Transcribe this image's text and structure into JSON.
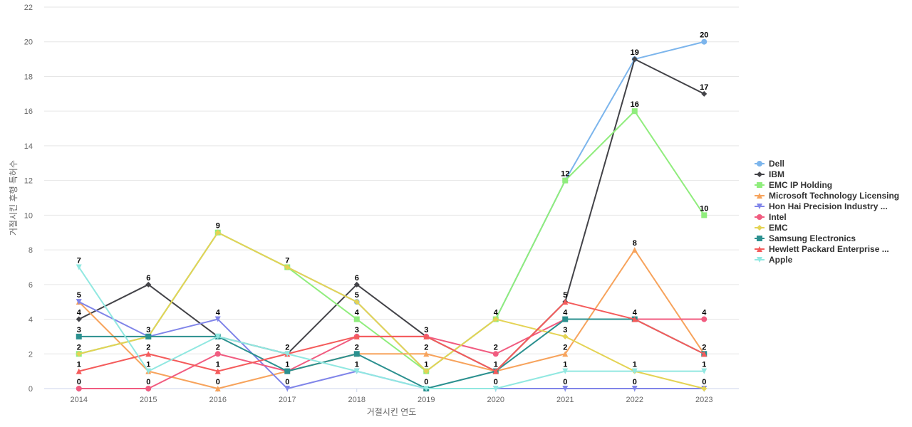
{
  "chart_data": {
    "type": "line",
    "title": "",
    "xlabel": "거절시킨 연도",
    "ylabel": "거절시킨 후행 특허수",
    "x": [
      "2014",
      "2015",
      "2016",
      "2017",
      "2018",
      "2019",
      "2020",
      "2021",
      "2022",
      "2023"
    ],
    "ylim": [
      0,
      22
    ],
    "yticks": [
      0,
      2,
      4,
      6,
      8,
      10,
      12,
      14,
      16,
      18,
      20,
      22
    ],
    "grid": true,
    "legend_position": "right",
    "series": [
      {
        "name": "Dell",
        "color": "#7cb5ec",
        "marker": "circle",
        "values": [
          2,
          3,
          9,
          7,
          5,
          1,
          4,
          12,
          19,
          20
        ]
      },
      {
        "name": "IBM",
        "color": "#434348",
        "marker": "diamond",
        "values": [
          4,
          6,
          3,
          2,
          6,
          3,
          1,
          5,
          19,
          17
        ]
      },
      {
        "name": "EMC IP Holding",
        "color": "#90ed7d",
        "marker": "square",
        "values": [
          2,
          3,
          9,
          7,
          4,
          1,
          4,
          12,
          16,
          10
        ]
      },
      {
        "name": "Microsoft Technology Licensing",
        "color": "#f7a35c",
        "marker": "triangle",
        "values": [
          5,
          1,
          0,
          1,
          2,
          2,
          1,
          2,
          8,
          2
        ]
      },
      {
        "name": "Hon Hai Precision Industry ...",
        "color": "#8085e9",
        "marker": "triangle-down",
        "values": [
          5,
          3,
          4,
          0,
          1,
          0,
          0,
          0,
          0,
          0
        ]
      },
      {
        "name": "Intel",
        "color": "#f15c80",
        "marker": "circle",
        "values": [
          0,
          0,
          2,
          1,
          3,
          3,
          2,
          4,
          4,
          4
        ]
      },
      {
        "name": "EMC",
        "color": "#e4d354",
        "marker": "diamond",
        "values": [
          2,
          3,
          9,
          7,
          5,
          1,
          4,
          3,
          1,
          0
        ]
      },
      {
        "name": "Samsung Electronics",
        "color": "#2b908f",
        "marker": "square",
        "values": [
          3,
          3,
          3,
          1,
          2,
          0,
          1,
          4,
          4,
          2
        ]
      },
      {
        "name": "Hewlett Packard Enterprise ...",
        "color": "#f45b5b",
        "marker": "triangle",
        "values": [
          1,
          2,
          1,
          2,
          3,
          3,
          1,
          5,
          4,
          2
        ]
      },
      {
        "name": "Apple",
        "color": "#91e8e1",
        "marker": "triangle-down",
        "values": [
          7,
          1,
          3,
          2,
          1,
          0,
          0,
          1,
          1,
          1
        ]
      }
    ],
    "data_labels": [
      {
        "x": "2014",
        "values": [
          7,
          5,
          4,
          3,
          2,
          1,
          0
        ]
      },
      {
        "x": "2015",
        "values": [
          6,
          3,
          2,
          1,
          0
        ]
      },
      {
        "x": "2016",
        "values": [
          9,
          4,
          2,
          1,
          0
        ]
      },
      {
        "x": "2017",
        "values": [
          7,
          2,
          1,
          0
        ]
      },
      {
        "x": "2018",
        "values": [
          6,
          5,
          4,
          3,
          2,
          1
        ]
      },
      {
        "x": "2019",
        "values": [
          3,
          2,
          1,
          0
        ]
      },
      {
        "x": "2020",
        "values": [
          4,
          2,
          1,
          0
        ]
      },
      {
        "x": "2021",
        "values": [
          12,
          5,
          4,
          3,
          2,
          1,
          0
        ]
      },
      {
        "x": "2022",
        "values": [
          19,
          16,
          8,
          4,
          1,
          0
        ]
      },
      {
        "x": "2023",
        "values": [
          20,
          17,
          10,
          4,
          2,
          1,
          0
        ]
      }
    ]
  }
}
